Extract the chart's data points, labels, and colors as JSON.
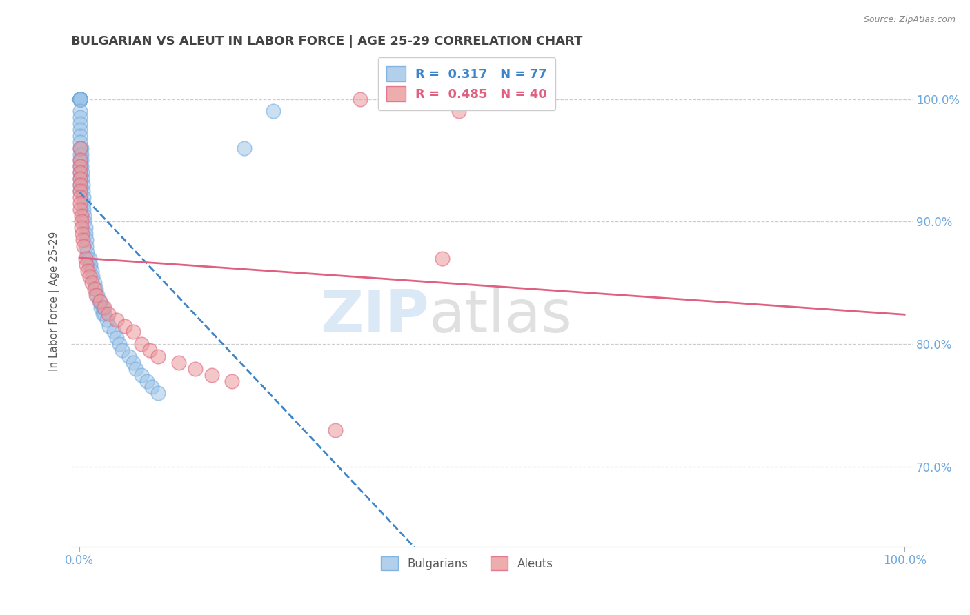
{
  "title": "BULGARIAN VS ALEUT IN LABOR FORCE | AGE 25-29 CORRELATION CHART",
  "source": "Source: ZipAtlas.com",
  "ylabel": "In Labor Force | Age 25-29",
  "xlim": [
    -0.01,
    1.01
  ],
  "ylim": [
    0.635,
    1.035
  ],
  "yticks": [
    0.7,
    0.8,
    0.9,
    1.0
  ],
  "ytick_labels": [
    "70.0%",
    "80.0%",
    "90.0%",
    "100.0%"
  ],
  "blue_color": "#9fc5e8",
  "pink_color": "#ea9999",
  "blue_edge_color": "#6fa8dc",
  "pink_edge_color": "#e06080",
  "blue_line_color": "#3d85c8",
  "pink_line_color": "#e06080",
  "title_color": "#434343",
  "axis_label_color": "#595959",
  "tick_color": "#6fa8dc",
  "legend_r1": "R =  0.317   N = 77",
  "legend_r2": "R =  0.485   N = 40",
  "bulgarians_x": [
    0.001,
    0.001,
    0.001,
    0.001,
    0.001,
    0.001,
    0.001,
    0.001,
    0.001,
    0.001,
    0.001,
    0.001,
    0.001,
    0.001,
    0.001,
    0.001,
    0.001,
    0.001,
    0.001,
    0.001,
    0.001,
    0.001,
    0.001,
    0.001,
    0.001,
    0.001,
    0.001,
    0.001,
    0.001,
    0.001,
    0.002,
    0.002,
    0.002,
    0.002,
    0.003,
    0.003,
    0.004,
    0.004,
    0.005,
    0.005,
    0.005,
    0.006,
    0.006,
    0.007,
    0.007,
    0.008,
    0.008,
    0.009,
    0.01,
    0.012,
    0.012,
    0.013,
    0.015,
    0.016,
    0.018,
    0.02,
    0.022,
    0.024,
    0.026,
    0.028,
    0.028,
    0.03,
    0.033,
    0.036,
    0.042,
    0.045,
    0.048,
    0.052,
    0.06,
    0.065,
    0.068,
    0.075,
    0.082,
    0.088,
    0.095,
    0.2,
    0.235
  ],
  "bulgarians_y": [
    1.0,
    1.0,
    1.0,
    1.0,
    1.0,
    1.0,
    1.0,
    1.0,
    1.0,
    1.0,
    1.0,
    1.0,
    1.0,
    1.0,
    1.0,
    1.0,
    0.99,
    0.985,
    0.98,
    0.975,
    0.97,
    0.965,
    0.96,
    0.955,
    0.95,
    0.945,
    0.94,
    0.935,
    0.93,
    0.925,
    0.96,
    0.955,
    0.95,
    0.945,
    0.94,
    0.935,
    0.93,
    0.925,
    0.92,
    0.915,
    0.91,
    0.905,
    0.9,
    0.895,
    0.89,
    0.885,
    0.88,
    0.875,
    0.87,
    0.865,
    0.87,
    0.865,
    0.86,
    0.855,
    0.85,
    0.845,
    0.84,
    0.835,
    0.83,
    0.825,
    0.83,
    0.825,
    0.82,
    0.815,
    0.81,
    0.805,
    0.8,
    0.795,
    0.79,
    0.785,
    0.78,
    0.775,
    0.77,
    0.765,
    0.76,
    0.96,
    0.99
  ],
  "aleuts_x": [
    0.001,
    0.001,
    0.001,
    0.001,
    0.001,
    0.001,
    0.001,
    0.001,
    0.001,
    0.001,
    0.002,
    0.002,
    0.002,
    0.003,
    0.004,
    0.005,
    0.007,
    0.008,
    0.01,
    0.012,
    0.015,
    0.018,
    0.02,
    0.025,
    0.03,
    0.035,
    0.045,
    0.055,
    0.065,
    0.075,
    0.085,
    0.095,
    0.12,
    0.14,
    0.16,
    0.185,
    0.31,
    0.34,
    0.44,
    0.46
  ],
  "aleuts_y": [
    0.96,
    0.95,
    0.945,
    0.94,
    0.935,
    0.93,
    0.925,
    0.92,
    0.915,
    0.91,
    0.905,
    0.9,
    0.895,
    0.89,
    0.885,
    0.88,
    0.87,
    0.865,
    0.86,
    0.855,
    0.85,
    0.845,
    0.84,
    0.835,
    0.83,
    0.825,
    0.82,
    0.815,
    0.81,
    0.8,
    0.795,
    0.79,
    0.785,
    0.78,
    0.775,
    0.77,
    0.73,
    1.0,
    0.87,
    0.99
  ]
}
